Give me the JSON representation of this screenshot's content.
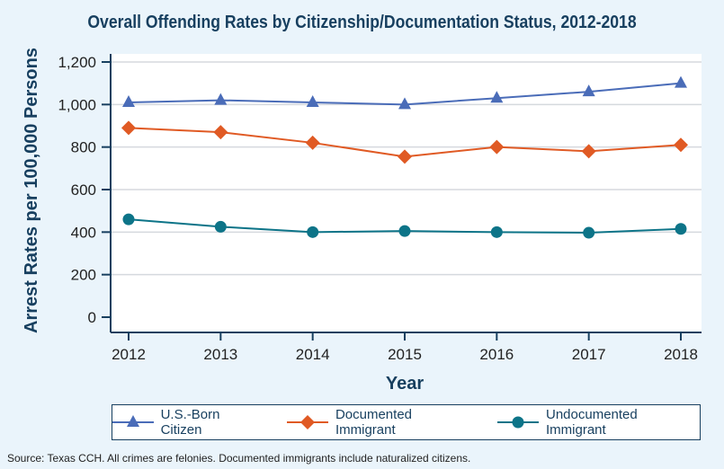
{
  "chart_data": {
    "type": "line",
    "title": "Overall Offending Rates by Citizenship/Documentation Status, 2012-2018",
    "xlabel": "Year",
    "ylabel": "Arrest Rates per 100,000 Persons",
    "x": [
      "2012",
      "2013",
      "2014",
      "2015",
      "2016",
      "2017",
      "2018"
    ],
    "ylim": [
      0,
      1200
    ],
    "yticks": [
      "0",
      "200",
      "400",
      "600",
      "800",
      "1,000",
      "1,200"
    ],
    "ytick_values": [
      0,
      200,
      400,
      600,
      800,
      1000,
      1200
    ],
    "grid": "horizontal",
    "legend_position": "bottom",
    "series": [
      {
        "name": "U.S.-Born Citizen",
        "marker": "triangle",
        "color": "#4a6cb8",
        "values": [
          1010,
          1020,
          1010,
          1000,
          1030,
          1060,
          1100
        ]
      },
      {
        "name": "Documented Immigrant",
        "marker": "diamond",
        "color": "#e05a24",
        "values": [
          890,
          870,
          820,
          755,
          800,
          780,
          810
        ]
      },
      {
        "name": "Undocumented Immigrant",
        "marker": "circle",
        "color": "#0d7488",
        "values": [
          460,
          425,
          400,
          405,
          400,
          397,
          415
        ]
      }
    ]
  },
  "source": "Source: Texas CCH. All crimes are felonies. Documented immigrants include naturalized citizens."
}
